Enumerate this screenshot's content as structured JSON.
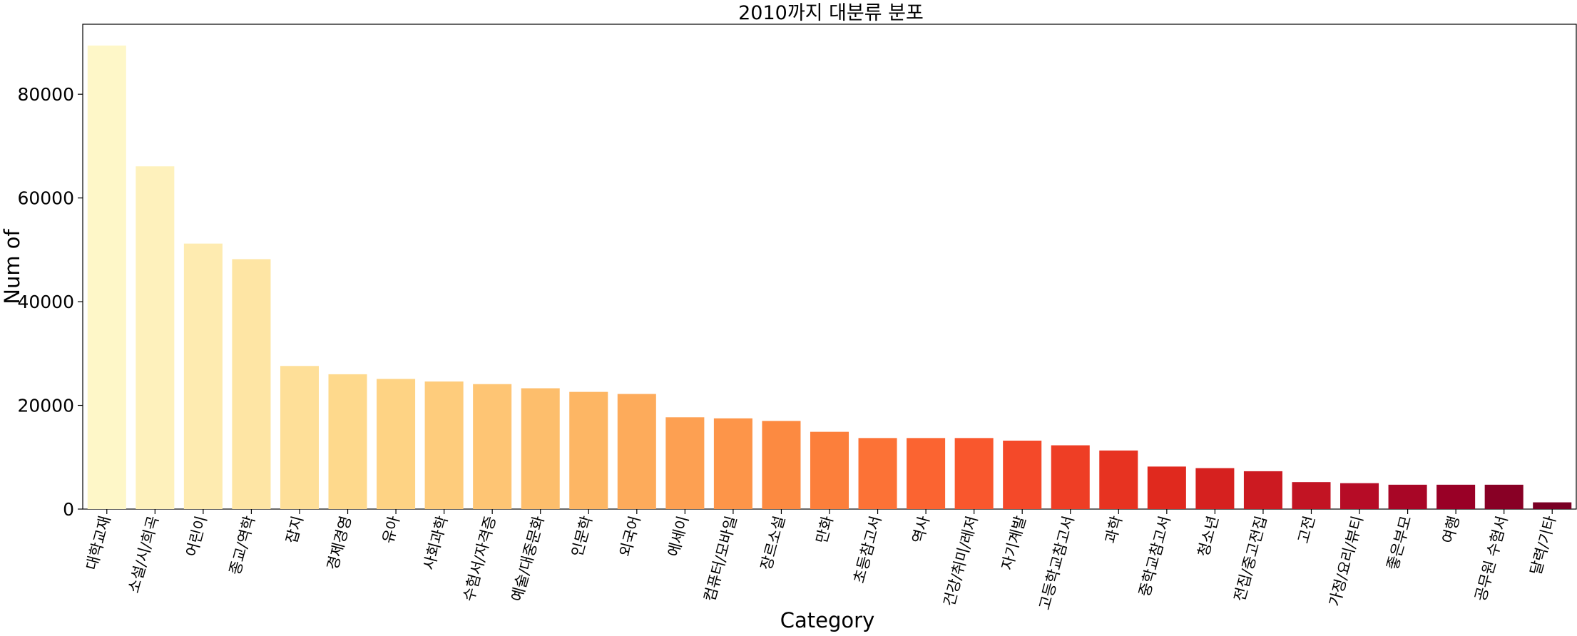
{
  "chart_data": {
    "type": "bar",
    "title": "2010까지 대분류 분포",
    "xlabel": "Category",
    "ylabel": "Num of",
    "ylim": [
      0,
      93500
    ],
    "yticks": [
      0,
      20000,
      40000,
      60000,
      80000
    ],
    "grid": false,
    "legend": "none",
    "palette": "YlOrRd",
    "categories": [
      "대학교재",
      "소설/시/희곡",
      "어린이",
      "종교/역학",
      "잡지",
      "경제경영",
      "유아",
      "사회과학",
      "수험서/자격증",
      "예술/대중문화",
      "인문학",
      "외국어",
      "에세이",
      "컴퓨터/모바일",
      "장르소설",
      "만화",
      "초등참고서",
      "역사",
      "건강/취미/레저",
      "자기계발",
      "고등학교참고서",
      "과학",
      "중학교참고서",
      "청소년",
      "전집/중고전집",
      "고전",
      "가정/요리/뷰티",
      "좋은부모",
      "여행",
      "공무원 수험서",
      "달력/기타"
    ],
    "values": [
      89400,
      66100,
      51200,
      48200,
      27600,
      26000,
      25100,
      24600,
      24100,
      23300,
      22600,
      22200,
      17700,
      17500,
      17000,
      14900,
      13700,
      13700,
      13700,
      13200,
      12300,
      11300,
      8200,
      7900,
      7300,
      5200,
      5000,
      4700,
      4700,
      4700,
      1300
    ],
    "colors": [
      "#fef7c8",
      "#fef1bc",
      "#feebb0",
      "#fee5a4",
      "#fedf98",
      "#fed98c",
      "#fed384",
      "#fecc7c",
      "#fec574",
      "#fdbe6c",
      "#fdb664",
      "#fdab5b",
      "#fda052",
      "#fd9549",
      "#fc8a41",
      "#fc7f3b",
      "#fc7236",
      "#fb6431",
      "#f9572d",
      "#f44929",
      "#ee3e25",
      "#e73321",
      "#e0291e",
      "#d6211f",
      "#cc1a21",
      "#c21423",
      "#b60c26",
      "#a80626",
      "#990026",
      "#880025",
      "#790024"
    ]
  }
}
